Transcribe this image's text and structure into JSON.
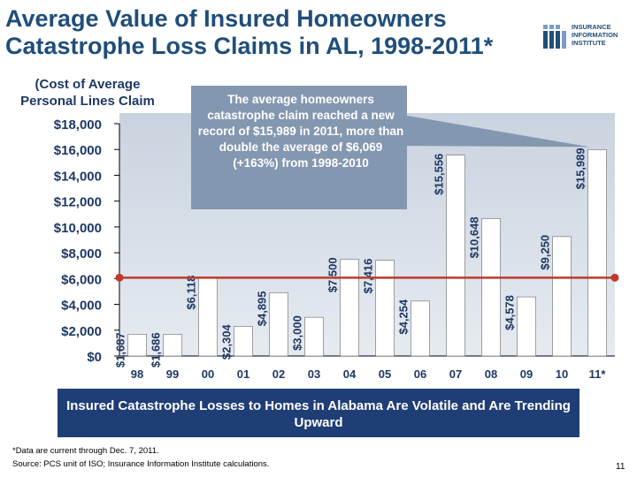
{
  "slide": {
    "title_line1": "Average Value of Insured Homeowners",
    "title_line2": "Catastrophe Loss Claims in AL, 1998-2011*",
    "subtitle_line1": "(Cost of Average",
    "subtitle_line2": "Personal Lines Claim",
    "callout": "The average homeowners catastrophe claim reached a new record of $15,989 in 2011, more than double the average of $6,069 (+163%) from 1998-2010",
    "banner": "Insured Catastrophe Losses to Homes in Alabama Are Volatile and Are Trending Upward",
    "footnote_line1": "*Data are current through Dec. 7, 2011.",
    "footnote_line2": "Source: PCS unit of ISO; Insurance Information Institute calculations.",
    "page_number": "11",
    "logo": {
      "line1": "INSURANCE",
      "line2": "INFORMATION",
      "line3": "INSTITUTE",
      "icon": "iii-logo-icon"
    },
    "colors": {
      "title": "#1f4e79",
      "bar": "#ffffff",
      "bar_highlight": "#ffffff",
      "average_line": "#c0392b",
      "callout_bg": "#8497b0",
      "banner_bg": "#1f3e76"
    }
  },
  "chart_data": {
    "type": "bar",
    "categories": [
      "98",
      "99",
      "00",
      "01",
      "02",
      "03",
      "04",
      "05",
      "06",
      "07",
      "08",
      "09",
      "10",
      "11*"
    ],
    "values": [
      1687,
      1686,
      6118,
      2304,
      4895,
      3000,
      7500,
      7416,
      4254,
      15556,
      10648,
      4578,
      9250,
      15989
    ],
    "value_labels": [
      "$1,687",
      "$1,686",
      "$6,118",
      "$2,304",
      "$4,895",
      "$3,000",
      "$7,500",
      "$7,416",
      "$4,254",
      "$15,556",
      "$10,648",
      "$4,578",
      "$9,250",
      "$15,989"
    ],
    "yticks": [
      0,
      2000,
      4000,
      6000,
      8000,
      10000,
      12000,
      14000,
      16000,
      18000
    ],
    "ytick_labels": [
      "$0",
      "$2,000",
      "$4,000",
      "$6,000",
      "$8,000",
      "$10,000",
      "$12,000",
      "$14,000",
      "$16,000",
      "$18,000"
    ],
    "ylim": [
      0,
      18000
    ],
    "average_line": 6069,
    "grid": false
  }
}
